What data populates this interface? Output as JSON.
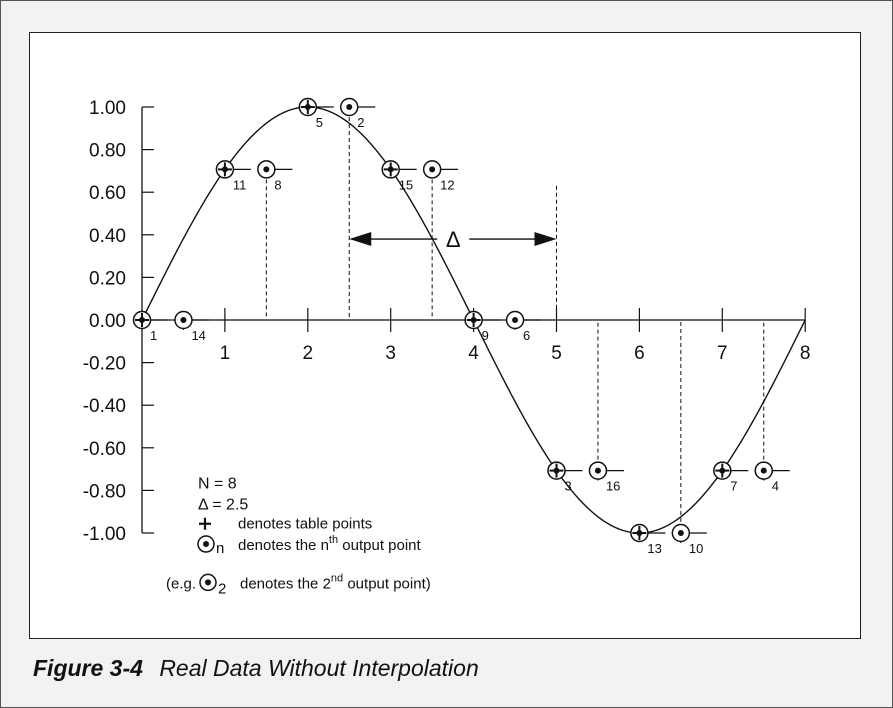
{
  "chart_data": {
    "type": "line",
    "title": "",
    "xlabel": "",
    "ylabel": "",
    "xlim": [
      0,
      8
    ],
    "ylim": [
      -1.0,
      1.0
    ],
    "x_ticks": [
      "1",
      "2",
      "3",
      "4",
      "5",
      "6",
      "7",
      "8"
    ],
    "y_ticks": [
      "1.00",
      "0.80",
      "0.60",
      "0.40",
      "0.20",
      "0.00",
      "-0.20",
      "-0.40",
      "-0.60",
      "-0.80",
      "-1.00"
    ],
    "curve": {
      "function": "sin(pi*x/4)",
      "x_range": [
        0,
        8
      ]
    },
    "table_points": [
      {
        "x": 0,
        "y": 0.0
      },
      {
        "x": 1,
        "y": 0.707
      },
      {
        "x": 2,
        "y": 1.0
      },
      {
        "x": 3,
        "y": 0.707
      },
      {
        "x": 4,
        "y": 0.0
      },
      {
        "x": 5,
        "y": -0.707
      },
      {
        "x": 6,
        "y": -1.0
      },
      {
        "x": 7,
        "y": -0.707
      }
    ],
    "output_points": [
      {
        "x": 0.0,
        "y": 0.0,
        "label": "1"
      },
      {
        "x": 2.5,
        "y": 1.0,
        "label": "2"
      },
      {
        "x": 5.0,
        "y": -0.707,
        "label": "3"
      },
      {
        "x": 7.5,
        "y": -0.707,
        "label": "4"
      },
      {
        "x": 2.0,
        "y": 1.0,
        "label": "5"
      },
      {
        "x": 4.5,
        "y": 0.0,
        "label": "6"
      },
      {
        "x": 7.0,
        "y": -0.707,
        "label": "7"
      },
      {
        "x": 1.5,
        "y": 0.707,
        "label": "8"
      },
      {
        "x": 4.0,
        "y": 0.0,
        "label": "9"
      },
      {
        "x": 6.5,
        "y": -1.0,
        "label": "10"
      },
      {
        "x": 1.0,
        "y": 0.707,
        "label": "11"
      },
      {
        "x": 3.5,
        "y": 0.707,
        "label": "12"
      },
      {
        "x": 6.0,
        "y": -1.0,
        "label": "13"
      },
      {
        "x": 0.5,
        "y": 0.0,
        "label": "14"
      },
      {
        "x": 3.0,
        "y": 0.707,
        "label": "15"
      },
      {
        "x": 5.5,
        "y": -0.707,
        "label": "16"
      }
    ],
    "delta_annotation": {
      "from": 2.5,
      "to": 5.0,
      "symbol": "Δ"
    },
    "legend": {
      "n_line": "N = 8",
      "delta_line": "Δ = 2.5",
      "table_desc": "denotes table points",
      "output_sub": "n",
      "output_desc_pre": "denotes the n",
      "output_desc_sup": "th",
      "output_desc_post": " output point",
      "example_pre": "(e.g.",
      "example_sub": "2",
      "example_mid": "denotes the 2",
      "example_sup": "nd",
      "example_post": " output point)"
    },
    "grid": false
  },
  "caption": {
    "figure_label": "Figure 3-4",
    "title": "Real Data Without Interpolation"
  }
}
